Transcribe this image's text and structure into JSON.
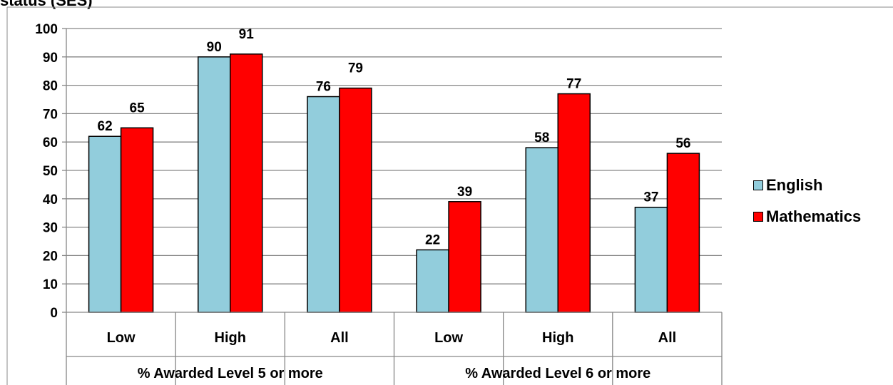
{
  "title_fragment": "status (SES)",
  "chart_data": {
    "type": "bar",
    "groups": [
      {
        "label": "% Awarded Level 5 or more",
        "categories": [
          "Low",
          "High",
          "All"
        ]
      },
      {
        "label": "% Awarded Level 6 or more",
        "categories": [
          "Low",
          "High",
          "All"
        ]
      }
    ],
    "categories": [
      "Low",
      "High",
      "All",
      "Low",
      "High",
      "All"
    ],
    "series": [
      {
        "name": "English",
        "values": [
          62,
          90,
          76,
          22,
          58,
          37
        ],
        "color": "#92cddc"
      },
      {
        "name": "Mathematics",
        "values": [
          65,
          91,
          79,
          39,
          77,
          56
        ],
        "color": "#ff0000"
      }
    ],
    "ylim": [
      0,
      100
    ],
    "yticks": [
      "0",
      "10",
      "20",
      "30",
      "40",
      "50",
      "60",
      "70",
      "80",
      "90",
      "100"
    ],
    "grid": true,
    "legend": "right"
  }
}
